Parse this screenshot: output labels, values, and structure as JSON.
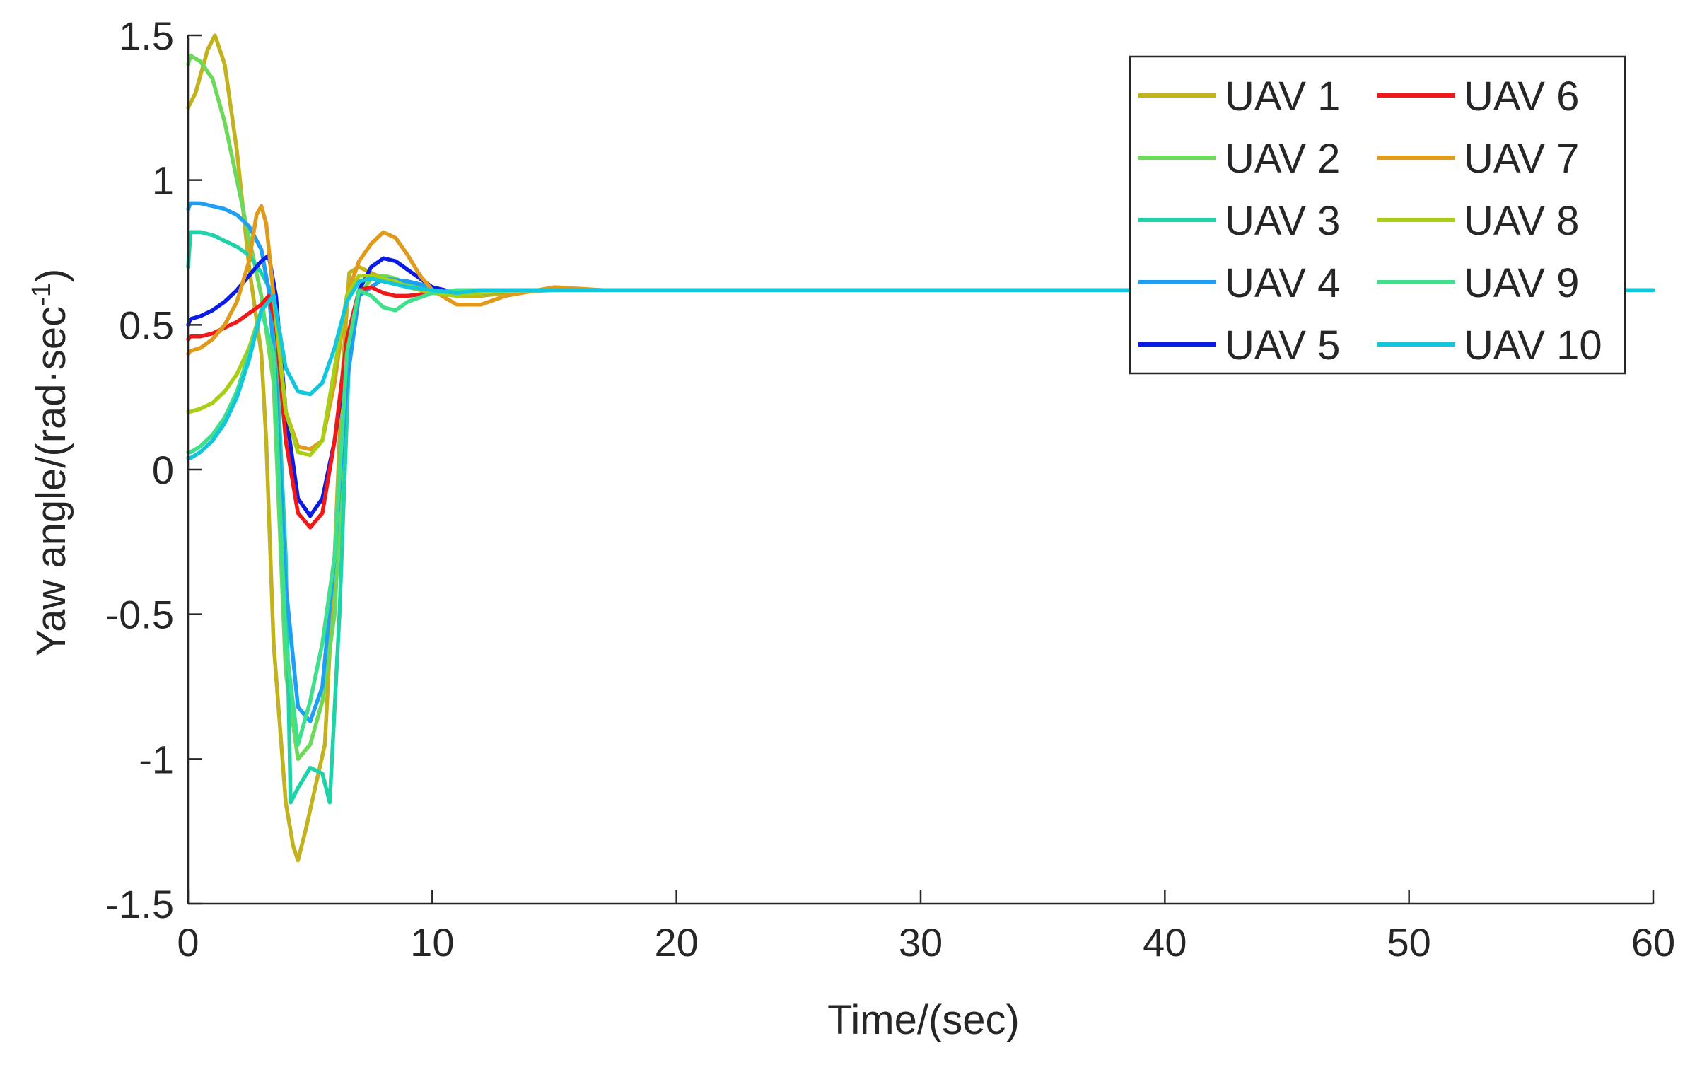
{
  "chart_data": {
    "type": "line",
    "title": "",
    "xlabel": "Time/(sec)",
    "ylabel": "Yaw angle/(rad·sec",
    "ylabel_sup": "-1",
    "ylabel_close": ")",
    "xlim": [
      0,
      60
    ],
    "ylim": [
      -1.5,
      1.5
    ],
    "x_ticks": [
      0,
      10,
      20,
      30,
      40,
      50,
      60
    ],
    "x_tick_labels": [
      "0",
      "10",
      "20",
      "30",
      "40",
      "50",
      "60"
    ],
    "y_ticks": [
      -1.5,
      -1,
      -0.5,
      0,
      0.5,
      1,
      1.5
    ],
    "y_tick_labels": [
      "-1.5",
      "-1",
      "-0.5",
      "0",
      "0.5",
      "1",
      "1.5"
    ],
    "grid": false,
    "legend_position": "top-right",
    "legend_columns": 2,
    "series": [
      {
        "name": "UAV 1",
        "color": "#c2b21e",
        "x": [
          0,
          0.3,
          0.8,
          1.1,
          1.5,
          2.0,
          2.5,
          3.0,
          3.2,
          3.5,
          4.0,
          4.3,
          4.5,
          4.8,
          5.2,
          5.6,
          6.0,
          6.3,
          6.6,
          7.0,
          7.5,
          8.0,
          8.5,
          9.0,
          10.0,
          11.0,
          12.0,
          13.0,
          15.0,
          17.0,
          20.0,
          60.0
        ],
        "y": [
          1.25,
          1.3,
          1.45,
          1.5,
          1.4,
          1.1,
          0.7,
          0.4,
          0.1,
          -0.6,
          -1.15,
          -1.3,
          -1.35,
          -1.25,
          -1.1,
          -0.95,
          -0.3,
          0.3,
          0.68,
          0.7,
          0.68,
          0.66,
          0.65,
          0.64,
          0.62,
          0.6,
          0.6,
          0.61,
          0.62,
          0.62,
          0.62,
          0.62
        ]
      },
      {
        "name": "UAV 2",
        "color": "#6cd95a",
        "x": [
          0,
          0.1,
          0.5,
          1.0,
          1.5,
          2.0,
          2.5,
          3.0,
          3.5,
          4.0,
          4.5,
          5.0,
          5.5,
          6.0,
          6.5,
          7.0,
          7.5,
          8.0,
          8.5,
          9.0,
          10.0,
          11.0,
          12.0,
          14.0,
          16.0,
          20.0,
          60.0
        ],
        "y": [
          1.4,
          1.43,
          1.41,
          1.35,
          1.2,
          1.0,
          0.8,
          0.6,
          0.3,
          -0.7,
          -1.0,
          -0.95,
          -0.8,
          -0.5,
          0.3,
          0.6,
          0.66,
          0.67,
          0.66,
          0.64,
          0.62,
          0.61,
          0.61,
          0.62,
          0.62,
          0.62,
          0.62
        ]
      },
      {
        "name": "UAV 3",
        "color": "#1fd2a8",
        "x": [
          0,
          0.1,
          0.5,
          1.0,
          1.5,
          2.0,
          2.5,
          3.0,
          3.5,
          4.0,
          4.2,
          4.5,
          5.0,
          5.5,
          5.8,
          6.2,
          6.6,
          7.0,
          8.0,
          9.0,
          10.0,
          11.0,
          12.0,
          14.0,
          20.0,
          60.0
        ],
        "y": [
          0.7,
          0.82,
          0.82,
          0.81,
          0.79,
          0.77,
          0.74,
          0.68,
          0.6,
          -0.3,
          -1.15,
          -1.1,
          -1.03,
          -1.05,
          -1.15,
          -0.5,
          0.4,
          0.6,
          0.66,
          0.65,
          0.63,
          0.61,
          0.61,
          0.62,
          0.62,
          0.62
        ]
      },
      {
        "name": "UAV 4",
        "color": "#1f9ef5",
        "x": [
          0,
          0.1,
          0.5,
          1.0,
          1.5,
          2.0,
          2.5,
          3.0,
          3.3,
          3.6,
          4.0,
          4.5,
          5.0,
          5.5,
          6.0,
          6.5,
          7.0,
          8.0,
          9.0,
          10.0,
          11.0,
          12.0,
          14.0,
          20.0,
          60.0
        ],
        "y": [
          0.9,
          0.92,
          0.92,
          0.91,
          0.9,
          0.88,
          0.84,
          0.76,
          0.62,
          0.3,
          -0.4,
          -0.82,
          -0.87,
          -0.75,
          -0.3,
          0.3,
          0.6,
          0.66,
          0.65,
          0.63,
          0.61,
          0.61,
          0.62,
          0.62,
          0.62
        ]
      },
      {
        "name": "UAV 5",
        "color": "#0a1be6",
        "x": [
          0,
          0.1,
          0.5,
          1.0,
          1.5,
          2.0,
          2.5,
          3.0,
          3.3,
          3.6,
          4.0,
          4.5,
          5.0,
          5.5,
          6.0,
          6.5,
          7.0,
          7.5,
          8.0,
          8.5,
          9.0,
          9.5,
          10.0,
          11.0,
          12.0,
          14.0,
          20.0,
          60.0
        ],
        "y": [
          0.5,
          0.52,
          0.53,
          0.55,
          0.58,
          0.62,
          0.67,
          0.72,
          0.74,
          0.6,
          0.2,
          -0.1,
          -0.16,
          -0.1,
          0.1,
          0.4,
          0.62,
          0.7,
          0.73,
          0.72,
          0.69,
          0.66,
          0.63,
          0.61,
          0.61,
          0.62,
          0.62,
          0.62
        ]
      },
      {
        "name": "UAV 6",
        "color": "#f01818",
        "x": [
          0,
          0.1,
          0.5,
          1.0,
          1.5,
          2.0,
          2.5,
          3.0,
          3.3,
          3.6,
          4.0,
          4.5,
          5.0,
          5.5,
          6.0,
          6.5,
          7.0,
          7.5,
          8.0,
          8.5,
          9.0,
          10.0,
          11.0,
          12.0,
          14.0,
          20.0,
          60.0
        ],
        "y": [
          0.45,
          0.46,
          0.46,
          0.47,
          0.49,
          0.51,
          0.54,
          0.57,
          0.6,
          0.5,
          0.1,
          -0.15,
          -0.2,
          -0.15,
          0.1,
          0.45,
          0.62,
          0.63,
          0.61,
          0.6,
          0.6,
          0.61,
          0.61,
          0.62,
          0.62,
          0.62,
          0.62
        ]
      },
      {
        "name": "UAV 7",
        "color": "#e09a1c",
        "x": [
          0,
          0.1,
          0.5,
          1.0,
          1.5,
          2.0,
          2.5,
          2.8,
          3.0,
          3.2,
          3.5,
          4.0,
          4.5,
          5.0,
          5.5,
          6.0,
          6.5,
          7.0,
          7.5,
          8.0,
          8.5,
          9.0,
          9.5,
          10.0,
          11.0,
          12.0,
          13.0,
          15.0,
          17.0,
          20.0,
          60.0
        ],
        "y": [
          0.4,
          0.41,
          0.42,
          0.45,
          0.5,
          0.58,
          0.72,
          0.88,
          0.91,
          0.85,
          0.6,
          0.2,
          0.08,
          0.07,
          0.1,
          0.3,
          0.6,
          0.72,
          0.78,
          0.82,
          0.8,
          0.74,
          0.67,
          0.62,
          0.57,
          0.57,
          0.6,
          0.63,
          0.62,
          0.62,
          0.62
        ]
      },
      {
        "name": "UAV 8",
        "color": "#a9cf14",
        "x": [
          0,
          0.1,
          0.5,
          1.0,
          1.5,
          2.0,
          2.5,
          3.0,
          3.5,
          4.0,
          4.5,
          5.0,
          5.5,
          6.0,
          6.5,
          7.0,
          7.5,
          8.0,
          8.5,
          9.0,
          10.0,
          11.0,
          12.0,
          14.0,
          20.0,
          60.0
        ],
        "y": [
          0.2,
          0.2,
          0.21,
          0.23,
          0.27,
          0.33,
          0.42,
          0.55,
          0.6,
          0.2,
          0.06,
          0.05,
          0.1,
          0.35,
          0.6,
          0.67,
          0.67,
          0.66,
          0.65,
          0.63,
          0.61,
          0.6,
          0.61,
          0.62,
          0.62,
          0.62
        ]
      },
      {
        "name": "UAV 9",
        "color": "#3fe08c",
        "x": [
          0,
          0.1,
          0.5,
          1.0,
          1.5,
          2.0,
          2.5,
          3.0,
          3.5,
          4.0,
          4.5,
          5.0,
          5.5,
          6.0,
          6.5,
          7.0,
          7.5,
          8.0,
          8.5,
          9.0,
          10.0,
          11.0,
          12.0,
          14.0,
          20.0,
          60.0
        ],
        "y": [
          0.06,
          0.06,
          0.08,
          0.12,
          0.18,
          0.27,
          0.4,
          0.55,
          0.4,
          -0.6,
          -0.95,
          -0.8,
          -0.6,
          -0.3,
          0.4,
          0.62,
          0.6,
          0.56,
          0.55,
          0.58,
          0.61,
          0.62,
          0.62,
          0.62,
          0.62,
          0.62
        ]
      },
      {
        "name": "UAV 10",
        "color": "#12c6dc",
        "x": [
          0,
          0.1,
          0.5,
          1.0,
          1.5,
          2.0,
          2.5,
          3.0,
          3.5,
          4.0,
          4.5,
          5.0,
          5.5,
          6.0,
          6.5,
          7.0,
          7.5,
          8.0,
          8.5,
          9.0,
          10.0,
          11.0,
          12.0,
          14.0,
          20.0,
          60.0
        ],
        "y": [
          0.04,
          0.04,
          0.06,
          0.1,
          0.16,
          0.25,
          0.38,
          0.55,
          0.6,
          0.35,
          0.27,
          0.26,
          0.3,
          0.42,
          0.58,
          0.65,
          0.66,
          0.65,
          0.64,
          0.63,
          0.62,
          0.61,
          0.62,
          0.62,
          0.62,
          0.62
        ]
      }
    ]
  }
}
